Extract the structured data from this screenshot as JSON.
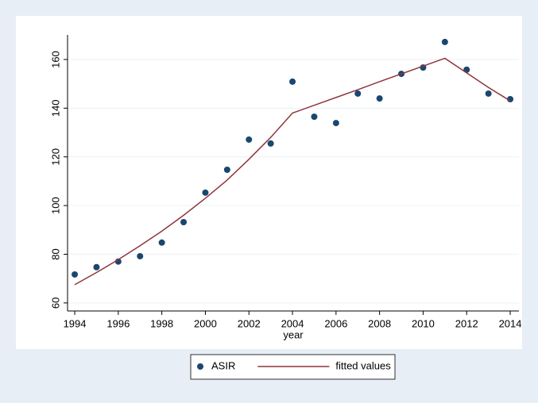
{
  "chart_data": {
    "type": "combo",
    "x_label": "year",
    "x": [
      1994,
      1995,
      1996,
      1997,
      1998,
      1999,
      2000,
      2001,
      2002,
      2003,
      2004,
      2005,
      2006,
      2007,
      2008,
      2009,
      2010,
      2011,
      2012,
      2013,
      2014
    ],
    "series": [
      {
        "name": "ASIR",
        "type": "scatter",
        "color": "#1a476f",
        "values": [
          71.7,
          74.7,
          77,
          79.2,
          84.8,
          93.2,
          105.3,
          114.7,
          127.1,
          125.5,
          150.9,
          136.5,
          133.9,
          146,
          144,
          154.1,
          156.7,
          167.2,
          155.8,
          146,
          143.7
        ]
      },
      {
        "name": "fitted values",
        "type": "line",
        "color": "#90353b",
        "values": [
          67.5,
          72.5,
          77.8,
          83.5,
          89.5,
          96,
          103,
          110.5,
          119,
          128,
          138,
          141.2,
          144.4,
          147.6,
          150.9,
          154.1,
          157.3,
          160.5,
          154.5,
          148.5,
          143
        ]
      }
    ],
    "xlim": [
      1993.67,
      2014.4
    ],
    "xticks": [
      1994,
      1996,
      1998,
      2000,
      2002,
      2004,
      2006,
      2008,
      2010,
      2012,
      2014
    ],
    "ylim": [
      56.7,
      170.1
    ],
    "yticks": [
      60,
      80,
      100,
      120,
      140,
      160
    ],
    "grid": true,
    "legend_position": "bottom"
  }
}
